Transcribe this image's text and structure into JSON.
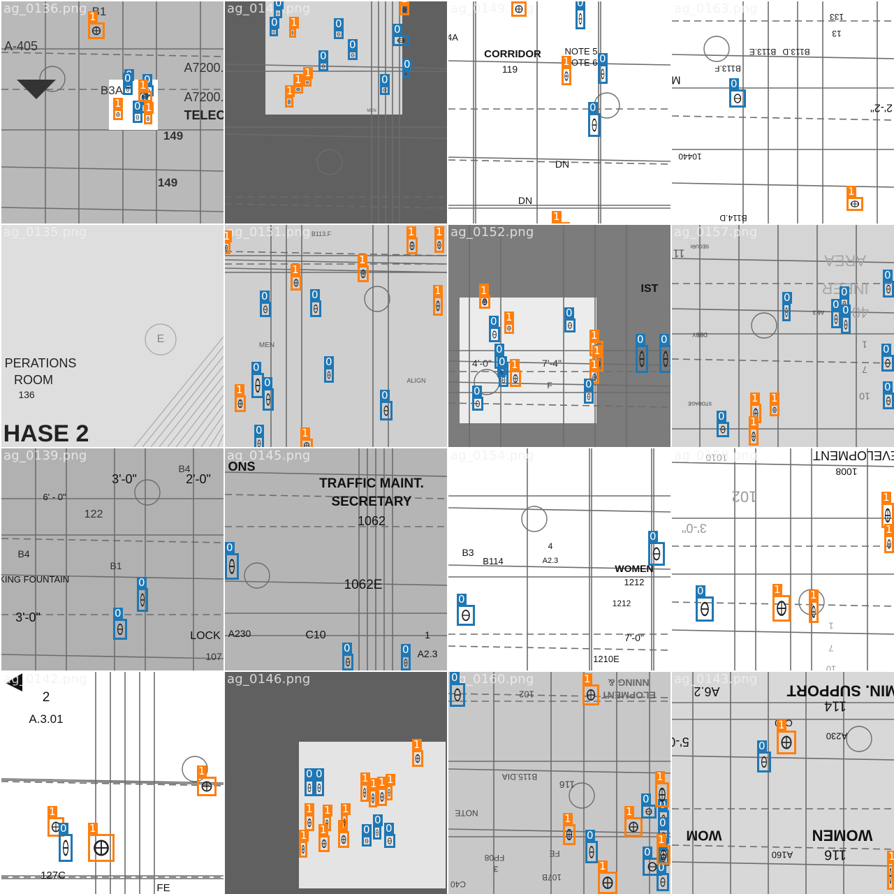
{
  "classes": {
    "0": {
      "label": "0",
      "color": "#1f77b4"
    },
    "1": {
      "label": "1",
      "color": "#ff7f0e"
    }
  },
  "tiles": [
    {
      "file": "ag_0136.png",
      "bg": "#b9b9b9",
      "line": "#6c6c6c",
      "texts": [
        "A-405",
        "A7200.A",
        "A7200.A",
        "TELECO",
        "149",
        "149",
        "B1",
        "B3A"
      ],
      "boxes": [
        {
          "cls": "1"
        },
        {
          "cls": "0"
        },
        {
          "cls": "0"
        },
        {
          "cls": "0"
        },
        {
          "cls": "0"
        },
        {
          "cls": "1"
        },
        {
          "cls": "0"
        },
        {
          "cls": "1"
        },
        {
          "cls": "1"
        }
      ]
    },
    {
      "file": "ag_0141.png",
      "bg": "#606060",
      "line": "#6c6c6c",
      "texts": [
        "MEN"
      ],
      "boxes": [
        {
          "cls": "0"
        },
        {
          "cls": "0"
        },
        {
          "cls": "1"
        },
        {
          "cls": "0"
        },
        {
          "cls": "0"
        },
        {
          "cls": "0"
        },
        {
          "cls": "0"
        },
        {
          "cls": "1"
        },
        {
          "cls": "1"
        },
        {
          "cls": "1"
        },
        {
          "cls": "0"
        },
        {
          "cls": "0"
        },
        {
          "cls": "1"
        }
      ]
    },
    {
      "file": "ag_0149.png",
      "bg": "#ffffff",
      "line": "#6c6c6c",
      "texts": [
        "CORRIDOR",
        "119",
        "NOTE 5",
        "NOTE 6",
        "DN",
        "DN",
        "4A"
      ],
      "boxes": [
        {
          "cls": "1"
        },
        {
          "cls": "0"
        },
        {
          "cls": "1"
        },
        {
          "cls": "0"
        },
        {
          "cls": "0"
        },
        {
          "cls": "1"
        }
      ]
    },
    {
      "file": "ag_0163.png",
      "bg": "#ffffff",
      "line": "#6c6c6c",
      "texts": [
        "B113.F",
        "B113.E",
        "B113.D",
        "10440",
        "M",
        "2'-2\"",
        "133",
        "13",
        "B114.D"
      ],
      "boxes": [
        {
          "cls": "0"
        },
        {
          "cls": "1"
        }
      ]
    },
    {
      "file": "ag_0135.png",
      "bg": "#dedede",
      "line": "#6c6c6c",
      "texts": [
        "PERATIONS",
        "ROOM",
        "136",
        "HASE 2",
        "E"
      ],
      "boxes": []
    },
    {
      "file": "ag_0151.png",
      "bg": "#cfcfcf",
      "line": "#6c6c6c",
      "texts": [
        "MEN",
        "ALIGN",
        "B113.F"
      ],
      "boxes": [
        {
          "cls": "1"
        },
        {
          "cls": "0"
        },
        {
          "cls": "0"
        },
        {
          "cls": "1"
        },
        {
          "cls": "0"
        },
        {
          "cls": "1"
        },
        {
          "cls": "0"
        },
        {
          "cls": "0"
        },
        {
          "cls": "0"
        },
        {
          "cls": "1"
        },
        {
          "cls": "1"
        },
        {
          "cls": "1"
        },
        {
          "cls": "1"
        },
        {
          "cls": "0"
        },
        {
          "cls": "1"
        }
      ]
    },
    {
      "file": "ag_0152.png",
      "bg": "#7c7c7c",
      "line": "#6c6c6c",
      "texts": [
        "IST",
        "4'-0\"",
        "7'-4\"",
        "F"
      ],
      "boxes": [
        {
          "cls": "1"
        },
        {
          "cls": "0"
        },
        {
          "cls": "1"
        },
        {
          "cls": "0"
        },
        {
          "cls": "0"
        },
        {
          "cls": "0"
        },
        {
          "cls": "1"
        },
        {
          "cls": "0"
        },
        {
          "cls": "1"
        },
        {
          "cls": "1"
        },
        {
          "cls": "1"
        },
        {
          "cls": "0"
        },
        {
          "cls": "0"
        },
        {
          "cls": "0"
        },
        {
          "cls": "0"
        },
        {
          "cls": "1"
        }
      ]
    },
    {
      "file": "ag_0157.png",
      "bg": "#d5d5d5",
      "line": "#6c6c6c",
      "texts": [
        "AREA",
        "INEER",
        "40",
        "11",
        "1",
        "7",
        "10",
        "STORAGE",
        "A6.3",
        "DBBY",
        "SECURI"
      ],
      "boxes": [
        {
          "cls": "0"
        },
        {
          "cls": "0"
        },
        {
          "cls": "0"
        },
        {
          "cls": "0"
        },
        {
          "cls": "0"
        },
        {
          "cls": "0"
        },
        {
          "cls": "1"
        },
        {
          "cls": "0"
        },
        {
          "cls": "1"
        },
        {
          "cls": "0"
        },
        {
          "cls": "1"
        }
      ]
    },
    {
      "file": "ag_0139.png",
      "bg": "#b1b1b1",
      "line": "#6c6c6c",
      "texts": [
        "3'-0\"",
        "2'-0\"",
        "6' - 0\"",
        "122",
        "B4",
        "B4",
        "B1",
        "NKING FOUNTAIN",
        "3'-0\"",
        "LOCK",
        "107"
      ],
      "boxes": [
        {
          "cls": "0"
        },
        {
          "cls": "0"
        }
      ]
    },
    {
      "file": "ag_0145.png",
      "bg": "#b5b5b5",
      "line": "#6c6c6c",
      "texts": [
        "ONS",
        "TRAFFIC MAINT.",
        "SECRETARY",
        "1062",
        "1062E",
        "A230",
        "C10",
        "1",
        "A2.3"
      ],
      "boxes": [
        {
          "cls": "0"
        },
        {
          "cls": "0"
        },
        {
          "cls": "0"
        }
      ]
    },
    {
      "file": "ag_0154.png",
      "bg": "#ffffff",
      "line": "#6c6c6c",
      "texts": [
        "B3",
        "B114",
        "4",
        "A2.3",
        "WOMEN",
        "1212",
        "1212",
        "7'-0\"",
        "1210E"
      ],
      "boxes": [
        {
          "cls": "0"
        },
        {
          "cls": "0"
        }
      ]
    },
    {
      "file": "ag_0158.png",
      "bg": "#ffffff",
      "line": "#6c6c6c",
      "texts": [
        "DEVELOPMENT",
        "1008",
        "102",
        "1010",
        "3'-0\"",
        "1",
        "7",
        "10"
      ],
      "boxes": [
        {
          "cls": "1"
        },
        {
          "cls": "1"
        },
        {
          "cls": "0"
        },
        {
          "cls": "1"
        },
        {
          "cls": "1"
        }
      ]
    },
    {
      "file": "ag_0142.png",
      "bg": "#ffffff",
      "line": "#6c6c6c",
      "texts": [
        "2",
        "A.3.01",
        "127C",
        "FE"
      ],
      "boxes": [
        {
          "cls": "1"
        },
        {
          "cls": "1"
        },
        {
          "cls": "0"
        },
        {
          "cls": "1"
        }
      ]
    },
    {
      "file": "ag_0146.png",
      "bg": "#606060",
      "line": "#6c6c6c",
      "texts": [],
      "boxes": [
        {
          "cls": "1"
        },
        {
          "cls": "0"
        },
        {
          "cls": "0"
        },
        {
          "cls": "1"
        },
        {
          "cls": "1"
        },
        {
          "cls": "1"
        },
        {
          "cls": "1"
        },
        {
          "cls": "1"
        },
        {
          "cls": "1"
        },
        {
          "cls": "1"
        },
        {
          "cls": "1"
        },
        {
          "cls": "0"
        },
        {
          "cls": "0"
        },
        {
          "cls": "0"
        },
        {
          "cls": "1"
        },
        {
          "cls": "1"
        }
      ]
    },
    {
      "file": "ag_0160.png",
      "bg": "#c8c8c8",
      "line": "#6c6c6c",
      "texts": [
        "NNING &",
        "ELOPMENT",
        "102",
        "116",
        "B115.DIA",
        "NOTE",
        "FP08",
        "107B",
        "FE",
        "C40",
        "3"
      ],
      "boxes": [
        {
          "cls": "0"
        },
        {
          "cls": "1"
        },
        {
          "cls": "1"
        },
        {
          "cls": "1"
        },
        {
          "cls": "0"
        },
        {
          "cls": "0"
        },
        {
          "cls": "0"
        },
        {
          "cls": "0"
        },
        {
          "cls": "0"
        },
        {
          "cls": "1"
        },
        {
          "cls": "1"
        },
        {
          "cls": "0"
        },
        {
          "cls": "0"
        },
        {
          "cls": "1"
        }
      ]
    },
    {
      "file": "ag_0143.png",
      "bg": "#d8d8d8",
      "line": "#6c6c6c",
      "texts": [
        "A6.2",
        "MIN. SUPPORT",
        "114",
        "A230",
        "C10",
        "5'-0",
        "WOMEN",
        "116",
        "A160",
        "WOM"
      ],
      "boxes": [
        {
          "cls": "0"
        },
        {
          "cls": "1"
        },
        {
          "cls": "1"
        }
      ]
    }
  ]
}
